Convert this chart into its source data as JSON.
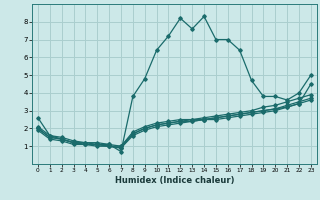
{
  "xlabel": "Humidex (Indice chaleur)",
  "ylabel": "",
  "xlim": [
    -0.5,
    23.5
  ],
  "ylim": [
    0,
    9
  ],
  "xticks": [
    0,
    1,
    2,
    3,
    4,
    5,
    6,
    7,
    8,
    9,
    10,
    11,
    12,
    13,
    14,
    15,
    16,
    17,
    18,
    19,
    20,
    21,
    22,
    23
  ],
  "yticks": [
    1,
    2,
    3,
    4,
    5,
    6,
    7,
    8
  ],
  "bg_color": "#cce8e8",
  "line_color": "#1a6b6b",
  "grid_color": "#aacece",
  "lines": [
    {
      "x": [
        0,
        1,
        2,
        3,
        4,
        5,
        6,
        7,
        8,
        9,
        10,
        11,
        12,
        13,
        14,
        15,
        16,
        17,
        18,
        19,
        20,
        21,
        22,
        23
      ],
      "y": [
        2.6,
        1.6,
        1.5,
        1.3,
        1.2,
        1.2,
        1.1,
        0.7,
        3.8,
        4.8,
        6.4,
        7.2,
        8.2,
        7.6,
        8.3,
        7.0,
        7.0,
        6.4,
        4.7,
        3.8,
        3.8,
        3.6,
        4.0,
        5.0
      ]
    },
    {
      "x": [
        0,
        1,
        2,
        3,
        4,
        5,
        6,
        7,
        8,
        9,
        10,
        11,
        12,
        13,
        14,
        15,
        16,
        17,
        18,
        19,
        20,
        21,
        22,
        23
      ],
      "y": [
        2.1,
        1.6,
        1.4,
        1.2,
        1.2,
        1.1,
        1.1,
        1.0,
        1.8,
        2.1,
        2.3,
        2.4,
        2.5,
        2.5,
        2.6,
        2.7,
        2.8,
        2.9,
        3.0,
        3.2,
        3.3,
        3.5,
        3.7,
        3.9
      ]
    },
    {
      "x": [
        0,
        1,
        2,
        3,
        4,
        5,
        6,
        7,
        8,
        9,
        10,
        11,
        12,
        13,
        14,
        15,
        16,
        17,
        18,
        19,
        20,
        21,
        22,
        23
      ],
      "y": [
        2.0,
        1.5,
        1.4,
        1.2,
        1.1,
        1.1,
        1.0,
        1.0,
        1.7,
        2.0,
        2.2,
        2.3,
        2.4,
        2.5,
        2.5,
        2.6,
        2.7,
        2.8,
        2.9,
        3.0,
        3.1,
        3.3,
        3.5,
        3.7
      ]
    },
    {
      "x": [
        0,
        1,
        2,
        3,
        4,
        5,
        6,
        7,
        8,
        9,
        10,
        11,
        12,
        13,
        14,
        15,
        16,
        17,
        18,
        19,
        20,
        21,
        22,
        23
      ],
      "y": [
        1.9,
        1.4,
        1.3,
        1.1,
        1.1,
        1.0,
        1.0,
        0.9,
        1.6,
        1.9,
        2.1,
        2.2,
        2.3,
        2.4,
        2.5,
        2.5,
        2.6,
        2.7,
        2.8,
        2.9,
        3.0,
        3.2,
        3.4,
        3.6
      ]
    },
    {
      "x": [
        0,
        1,
        2,
        3,
        4,
        5,
        6,
        7,
        8,
        9,
        10,
        11,
        12,
        13,
        14,
        15,
        16,
        17,
        18,
        19,
        20,
        21,
        22,
        23
      ],
      "y": [
        2.0,
        1.5,
        1.4,
        1.2,
        1.1,
        1.1,
        1.0,
        0.9,
        1.7,
        2.0,
        2.2,
        2.3,
        2.4,
        2.4,
        2.5,
        2.6,
        2.7,
        2.8,
        2.9,
        3.0,
        3.1,
        3.2,
        3.4,
        4.5
      ]
    }
  ]
}
